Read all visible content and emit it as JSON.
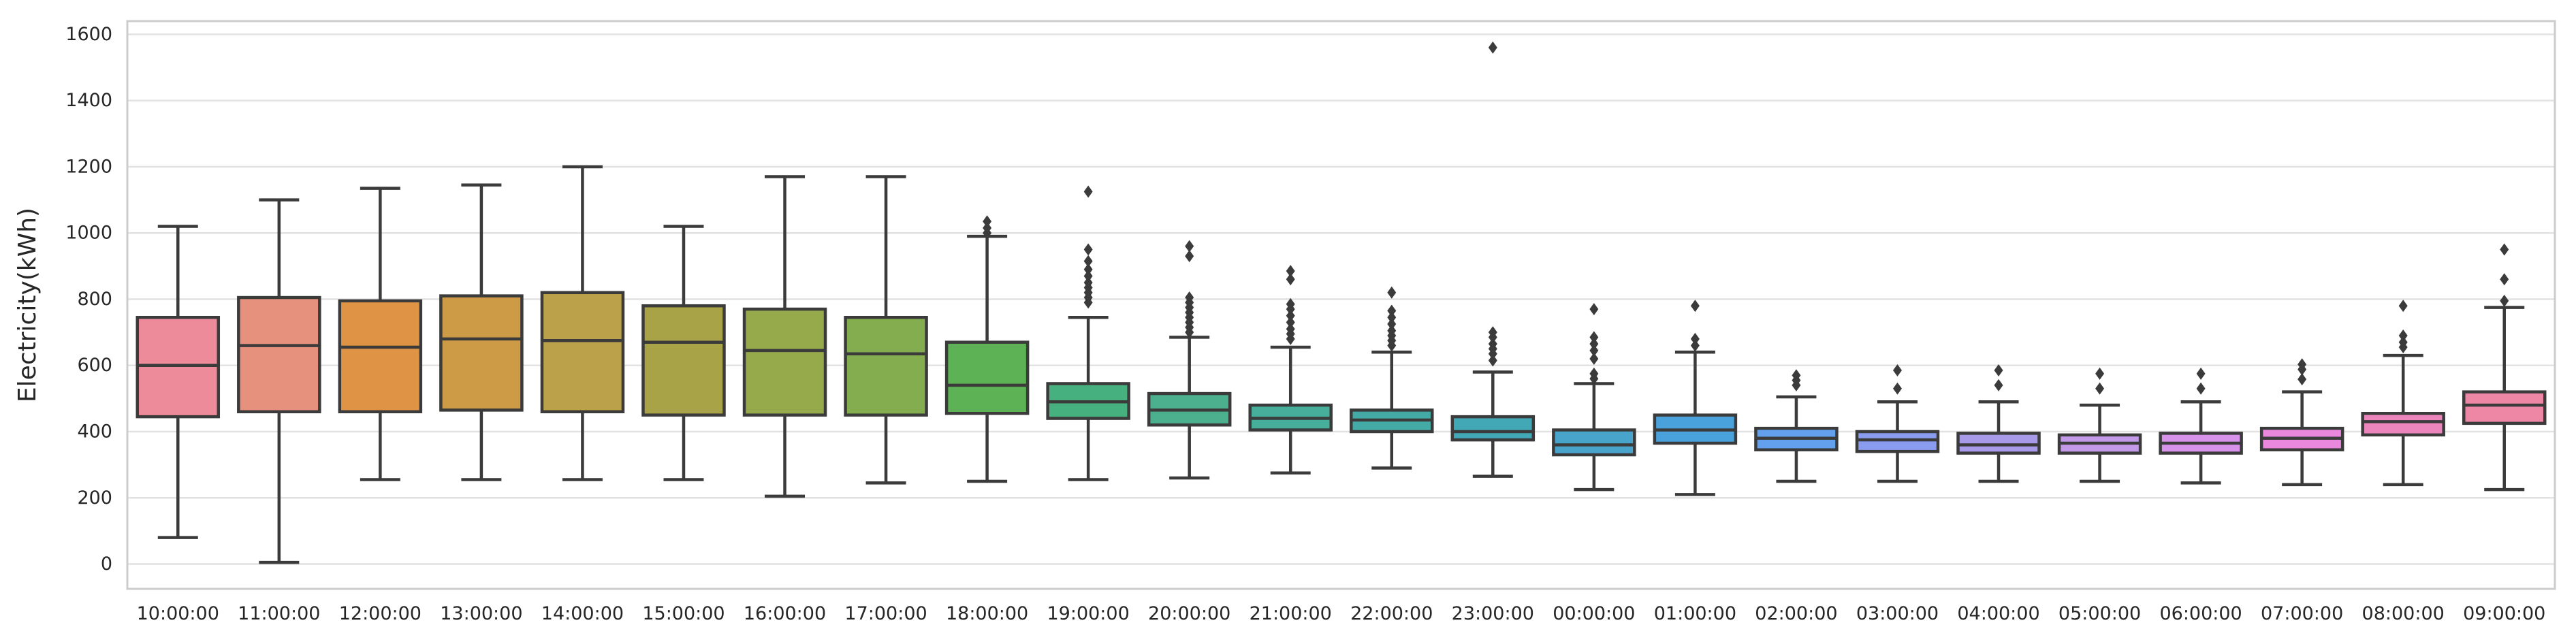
{
  "chart_data": {
    "type": "box",
    "title": "",
    "xlabel": "",
    "ylabel": "Electricity(kWh)",
    "ylim": [
      -75,
      1640
    ],
    "yticks": [
      0,
      200,
      400,
      600,
      800,
      1000,
      1200,
      1400,
      1600
    ],
    "grid": "horizontal-whitegrid",
    "legend": "none",
    "categories": [
      "10:00:00",
      "11:00:00",
      "12:00:00",
      "13:00:00",
      "14:00:00",
      "15:00:00",
      "16:00:00",
      "17:00:00",
      "18:00:00",
      "19:00:00",
      "20:00:00",
      "21:00:00",
      "22:00:00",
      "23:00:00",
      "00:00:00",
      "01:00:00",
      "02:00:00",
      "03:00:00",
      "04:00:00",
      "05:00:00",
      "06:00:00",
      "07:00:00",
      "08:00:00",
      "09:00:00"
    ],
    "series": [
      {
        "label": "10:00:00",
        "color": "#ed8b9b",
        "whislo": 80,
        "q1": 445,
        "median": 600,
        "q3": 745,
        "whishi": 1020,
        "fliers": []
      },
      {
        "label": "11:00:00",
        "color": "#e6917d",
        "whislo": 5,
        "q1": 460,
        "median": 660,
        "q3": 805,
        "whishi": 1100,
        "fliers": []
      },
      {
        "label": "12:00:00",
        "color": "#de9345",
        "whislo": 255,
        "q1": 460,
        "median": 655,
        "q3": 795,
        "whishi": 1135,
        "fliers": []
      },
      {
        "label": "13:00:00",
        "color": "#cd9b46",
        "whislo": 255,
        "q1": 465,
        "median": 680,
        "q3": 810,
        "whishi": 1145,
        "fliers": []
      },
      {
        "label": "14:00:00",
        "color": "#bca14b",
        "whislo": 255,
        "q1": 460,
        "median": 675,
        "q3": 820,
        "whishi": 1200,
        "fliers": []
      },
      {
        "label": "15:00:00",
        "color": "#a9a348",
        "whislo": 255,
        "q1": 450,
        "median": 670,
        "q3": 780,
        "whishi": 1020,
        "fliers": []
      },
      {
        "label": "16:00:00",
        "color": "#96a94b",
        "whislo": 205,
        "q1": 450,
        "median": 645,
        "q3": 770,
        "whishi": 1170,
        "fliers": []
      },
      {
        "label": "17:00:00",
        "color": "#83ad4e",
        "whislo": 245,
        "q1": 450,
        "median": 635,
        "q3": 745,
        "whishi": 1170,
        "fliers": []
      },
      {
        "label": "18:00:00",
        "color": "#5cb254",
        "whislo": 250,
        "q1": 455,
        "median": 540,
        "q3": 670,
        "whishi": 990,
        "fliers": [
          1000,
          1015,
          1035
        ]
      },
      {
        "label": "19:00:00",
        "color": "#46b17e",
        "whislo": 255,
        "q1": 440,
        "median": 490,
        "q3": 545,
        "whishi": 745,
        "fliers": [
          790,
          805,
          820,
          835,
          850,
          870,
          890,
          915,
          950,
          1125
        ]
      },
      {
        "label": "20:00:00",
        "color": "#4caf8e",
        "whislo": 260,
        "q1": 420,
        "median": 465,
        "q3": 515,
        "whishi": 685,
        "fliers": [
          700,
          715,
          730,
          745,
          760,
          775,
          790,
          805,
          930,
          960
        ]
      },
      {
        "label": "21:00:00",
        "color": "#47ae9b",
        "whislo": 275,
        "q1": 405,
        "median": 440,
        "q3": 480,
        "whishi": 655,
        "fliers": [
          680,
          695,
          710,
          730,
          750,
          770,
          785,
          860,
          885
        ]
      },
      {
        "label": "22:00:00",
        "color": "#44aaa6",
        "whislo": 290,
        "q1": 400,
        "median": 435,
        "q3": 465,
        "whishi": 640,
        "fliers": [
          660,
          675,
          690,
          705,
          725,
          745,
          765,
          820
        ]
      },
      {
        "label": "23:00:00",
        "color": "#43a8b5",
        "whislo": 265,
        "q1": 375,
        "median": 400,
        "q3": 445,
        "whishi": 580,
        "fliers": [
          615,
          635,
          650,
          665,
          685,
          700,
          1560
        ]
      },
      {
        "label": "00:00:00",
        "color": "#48a4cb",
        "whislo": 225,
        "q1": 330,
        "median": 360,
        "q3": 405,
        "whishi": 545,
        "fliers": [
          560,
          575,
          620,
          645,
          665,
          685,
          770
        ]
      },
      {
        "label": "01:00:00",
        "color": "#4aa2dd",
        "whislo": 210,
        "q1": 365,
        "median": 405,
        "q3": 450,
        "whishi": 640,
        "fliers": [
          660,
          680,
          780
        ]
      },
      {
        "label": "02:00:00",
        "color": "#63a0ee",
        "whislo": 250,
        "q1": 345,
        "median": 380,
        "q3": 410,
        "whishi": 505,
        "fliers": [
          540,
          555,
          570
        ]
      },
      {
        "label": "03:00:00",
        "color": "#8a9cf0",
        "whislo": 250,
        "q1": 340,
        "median": 375,
        "q3": 400,
        "whishi": 490,
        "fliers": [
          530,
          585
        ]
      },
      {
        "label": "04:00:00",
        "color": "#a89ae9",
        "whislo": 250,
        "q1": 335,
        "median": 360,
        "q3": 395,
        "whishi": 490,
        "fliers": [
          540,
          585
        ]
      },
      {
        "label": "05:00:00",
        "color": "#c49ae8",
        "whislo": 250,
        "q1": 335,
        "median": 365,
        "q3": 390,
        "whishi": 480,
        "fliers": [
          530,
          575
        ]
      },
      {
        "label": "06:00:00",
        "color": "#d792ea",
        "whislo": 245,
        "q1": 335,
        "median": 365,
        "q3": 395,
        "whishi": 490,
        "fliers": [
          530,
          575
        ]
      },
      {
        "label": "07:00:00",
        "color": "#e988dd",
        "whislo": 240,
        "q1": 345,
        "median": 380,
        "q3": 410,
        "whishi": 520,
        "fliers": [
          558,
          588,
          603
        ]
      },
      {
        "label": "08:00:00",
        "color": "#ec85bc",
        "whislo": 240,
        "q1": 390,
        "median": 430,
        "q3": 455,
        "whishi": 630,
        "fliers": [
          655,
          670,
          690,
          780
        ]
      },
      {
        "label": "09:00:00",
        "color": "#ee87a5",
        "whislo": 225,
        "q1": 425,
        "median": 480,
        "q3": 520,
        "whishi": 775,
        "fliers": [
          795,
          860,
          950
        ]
      }
    ],
    "style": {
      "box_edge_color": "#3b3b3b",
      "grid_color": "#e2e2e2",
      "spine_color": "#cccccc",
      "flier_color": "#3b3b3b",
      "background": "#ffffff"
    }
  }
}
